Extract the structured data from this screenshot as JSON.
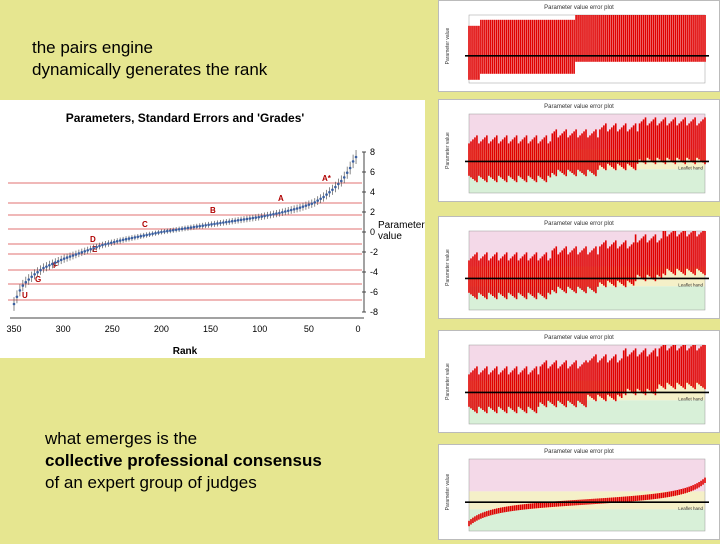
{
  "captions": {
    "top_line1": "the pairs engine",
    "top_line2": "dynamically generates the rank",
    "bottom_line1": "what emerges is the",
    "bottom_line2": "collective professional consensus",
    "bottom_line3": "of an expert group of judges"
  },
  "main_chart": {
    "title": "Parameters, Standard Errors and 'Grades'",
    "xlabel": "Rank",
    "ylabel_line1": "Parameter",
    "ylabel_line2": "value",
    "x_ticks": [
      "350",
      "300",
      "250",
      "200",
      "150",
      "100",
      "50",
      "0"
    ],
    "y_ticks": [
      "8",
      "6",
      "4",
      "2",
      "0",
      "-2",
      "-4",
      "-6",
      "-8"
    ],
    "grades": [
      "A*",
      "A",
      "B",
      "C",
      "D",
      "E",
      "F",
      "G",
      "U"
    ]
  },
  "chart_data": {
    "type": "scatter",
    "title": "Parameters, Standard Errors and 'Grades'",
    "xlabel": "Rank",
    "ylabel": "Parameter value",
    "xlim": [
      350,
      0
    ],
    "ylim": [
      -8,
      8
    ],
    "x": [
      350,
      345,
      340,
      330,
      320,
      300,
      280,
      260,
      240,
      220,
      200,
      180,
      160,
      140,
      120,
      100,
      80,
      60,
      45,
      35,
      25,
      15,
      8,
      3
    ],
    "y": [
      -7.2,
      -6.0,
      -5.2,
      -4.3,
      -3.6,
      -2.7,
      -2.0,
      -1.3,
      -0.8,
      -0.4,
      0.0,
      0.3,
      0.6,
      0.9,
      1.2,
      1.5,
      1.9,
      2.4,
      2.9,
      3.5,
      4.3,
      5.3,
      6.4,
      7.5
    ],
    "grade_lines": [
      {
        "grade": "A*",
        "value": 4.9
      },
      {
        "grade": "A",
        "value": 2.9
      },
      {
        "grade": "B",
        "value": 1.7
      },
      {
        "grade": "C",
        "value": 0.3
      },
      {
        "grade": "D",
        "value": -1.2
      },
      {
        "grade": "E",
        "value": -2.2
      },
      {
        "grade": "F",
        "value": -3.8
      },
      {
        "grade": "G",
        "value": -5.2
      },
      {
        "grade": "U",
        "value": -6.8
      }
    ],
    "grid": false
  },
  "thumbnails": {
    "title": "Parameter value error plot",
    "ylabel": "Parameter value",
    "legend_label": "Leaflet hand",
    "accent_red": "#e00000",
    "band_pink": "#f4d9e8",
    "band_yellow": "#f5f0c8",
    "band_green": "#d8f0d8"
  }
}
